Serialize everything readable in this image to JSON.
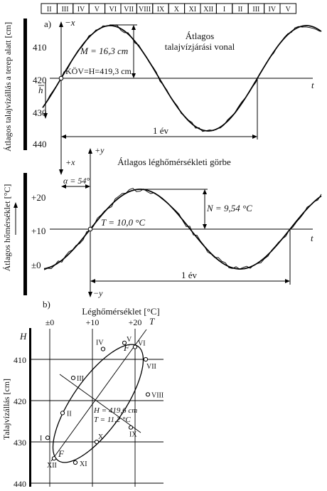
{
  "months": [
    "II",
    "III",
    "IV",
    "V",
    "VI",
    "VII",
    "VIII",
    "IX",
    "X",
    "XI",
    "XII",
    "I",
    "II",
    "III",
    "IV",
    "V"
  ],
  "panel_a": {
    "tag": "a)",
    "title": "Átlagos talajvízjárási vonal",
    "title_line1": "Átlagos",
    "title_line2": "talajvízjárási vonal",
    "ylabel": "Átlagos talajvízállás a terep alatt [cm]",
    "yticks": [
      "410",
      "420",
      "430",
      "440"
    ],
    "amplitude": "M = 16,3 cm",
    "mean": "KÖV=H=419,3 cm",
    "hbar": "h",
    "axis_neg_x": "−x",
    "axis_pos_x": "+x",
    "time": "t",
    "period": "1 év"
  },
  "panel_temp": {
    "title": "Átlagos léghőmérsékleti görbe",
    "ylabel": "Átlagos hőmérséklet [°C]",
    "yticks": [
      "+20",
      "+10",
      "±0"
    ],
    "amplitude": "N = 9,54 °C",
    "mean": "T = 10,0 °C",
    "phase": "α = 54°",
    "axis_pos_y": "+y",
    "axis_neg_y": "−y",
    "time": "t",
    "period": "1 év"
  },
  "panel_b": {
    "tag": "b)",
    "xlabel": "Léghőmérséklet [°C]",
    "ylabel": "Talajvízállás [cm]",
    "xticks": [
      "±0",
      "+10",
      "+20"
    ],
    "xaxis_T": "T",
    "yaxis_H": "H",
    "yticks": [
      "410",
      "420",
      "430",
      "440"
    ],
    "center_H": "H = 419,6 cm",
    "center_T": "T = 11,2 °C",
    "focus": "F",
    "points": [
      {
        "label": "I",
        "temp": -0.5,
        "level": 429
      },
      {
        "label": "II",
        "temp": 3,
        "level": 423
      },
      {
        "label": "III",
        "temp": 5.5,
        "level": 414.5
      },
      {
        "label": "IV",
        "temp": 12.5,
        "level": 407.5
      },
      {
        "label": "V",
        "temp": 17.5,
        "level": 406
      },
      {
        "label": "VI",
        "temp": 20,
        "level": 407
      },
      {
        "label": "VII",
        "temp": 22.5,
        "level": 410
      },
      {
        "label": "VIII",
        "temp": 23,
        "level": 418.5
      },
      {
        "label": "IX",
        "temp": 19,
        "level": 426.5
      },
      {
        "label": "X",
        "temp": 11,
        "level": 430
      },
      {
        "label": "XI",
        "temp": 6,
        "level": 435
      },
      {
        "label": "XII",
        "temp": 1,
        "level": 434
      }
    ]
  }
}
